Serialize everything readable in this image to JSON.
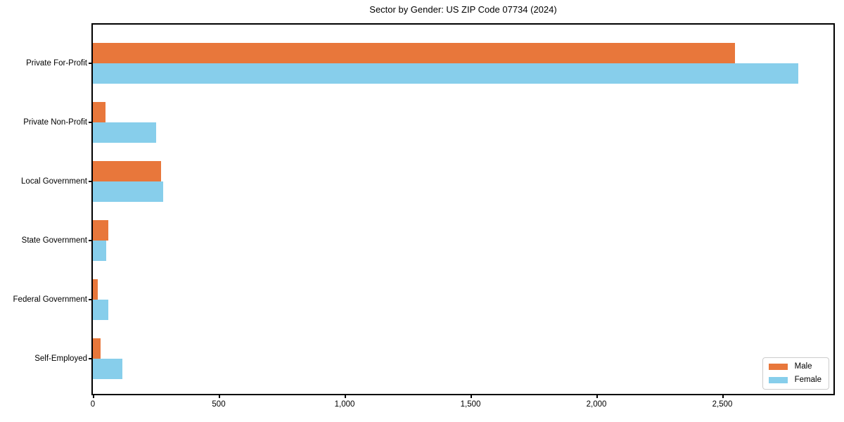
{
  "chart_data": {
    "type": "bar",
    "orientation": "horizontal",
    "title": "Sector by Gender: US ZIP Code 07734 (2024)",
    "categories": [
      "Private For-Profit",
      "Private Non-Profit",
      "Local Government",
      "State Government",
      "Federal Government",
      "Self-Employed"
    ],
    "series": [
      {
        "name": "Male",
        "color": "#E8773B",
        "values": [
          2550,
          50,
          272,
          61,
          20,
          31
        ]
      },
      {
        "name": "Female",
        "color": "#87CEEB",
        "values": [
          2800,
          250,
          278,
          53,
          61,
          117
        ]
      }
    ],
    "xlabel": "",
    "ylabel": "",
    "xlim": [
      0,
      2940
    ],
    "x_ticks": [
      0,
      500,
      1000,
      1500,
      2000,
      2500
    ],
    "x_tick_labels": [
      "0",
      "500",
      "1,000",
      "1,500",
      "2,000",
      "2,500"
    ],
    "grid": false,
    "legend": {
      "position": "lower right",
      "entries": [
        "Male",
        "Female"
      ]
    },
    "colors": {
      "axis": "#000000",
      "background": "#ffffff",
      "legend_border": "#cccccc"
    }
  }
}
